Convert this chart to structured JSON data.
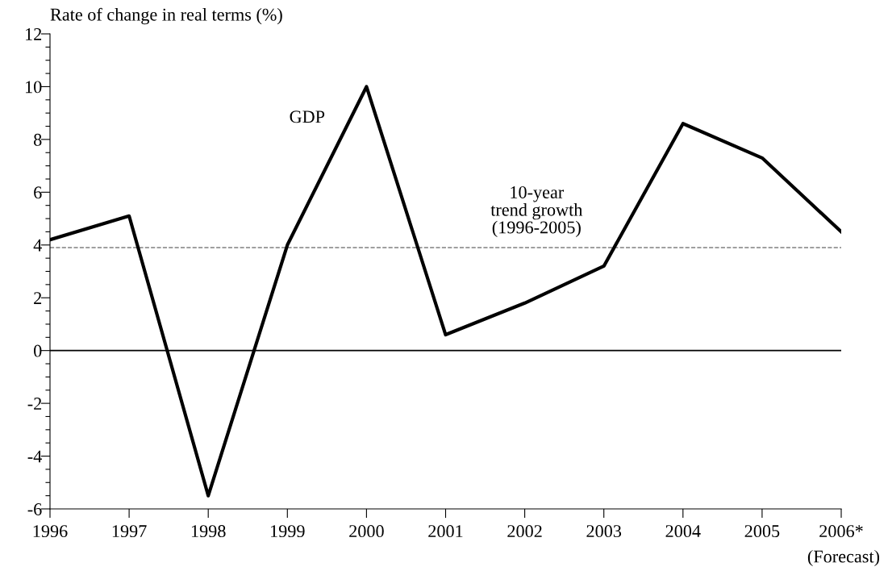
{
  "chart_data": {
    "type": "line",
    "ylabel": "Rate of change in real terms (%)",
    "categories": [
      "1996",
      "1997",
      "1998",
      "1999",
      "2000",
      "2001",
      "2002",
      "2003",
      "2004",
      "2005",
      "2006*"
    ],
    "series": [
      {
        "name": "GDP",
        "color": "#000000",
        "values": [
          4.2,
          5.1,
          -5.5,
          4.0,
          10.0,
          0.6,
          1.8,
          3.2,
          8.6,
          7.3,
          4.5
        ]
      }
    ],
    "ylim": [
      -6,
      12
    ],
    "yticks": [
      -6,
      {
        "value": -5.5,
        "label": null
      },
      {
        "value": -5,
        "label": null
      },
      {
        "value": -4.5,
        "label": null
      },
      -4,
      {
        "value": -3.5,
        "label": null
      },
      {
        "value": -3,
        "label": null
      },
      {
        "value": -2.5,
        "label": null
      },
      -2,
      {
        "value": -1.5,
        "label": null
      },
      {
        "value": -1,
        "label": null
      },
      {
        "value": -0.5,
        "label": null
      },
      0,
      {
        "value": 0.5,
        "label": null
      },
      {
        "value": 1,
        "label": null
      },
      {
        "value": 1.5,
        "label": null
      },
      2,
      {
        "value": 2.5,
        "label": null
      },
      {
        "value": 3,
        "label": null
      },
      {
        "value": 3.5,
        "label": null
      },
      4,
      {
        "value": 4.5,
        "label": null
      },
      {
        "value": 5,
        "label": null
      },
      {
        "value": 5.5,
        "label": null
      },
      6,
      {
        "value": 6.5,
        "label": null
      },
      {
        "value": 7,
        "label": null
      },
      {
        "value": 7.5,
        "label": null
      },
      8,
      {
        "value": 8.5,
        "label": null
      },
      {
        "value": 9,
        "label": null
      },
      {
        "value": 9.5,
        "label": null
      },
      10,
      {
        "value": 10.5,
        "label": null
      },
      {
        "value": 11,
        "label": null
      },
      {
        "value": 11.5,
        "label": null
      },
      12
    ],
    "ref_lines": [
      {
        "axis": "y",
        "value": 0,
        "label": null,
        "color": "#000000",
        "line_style": "solid"
      },
      {
        "axis": "y",
        "value": 3.9,
        "label": "10-year\ntrend growth\n(1996-2005)",
        "color": "#808080",
        "line_style": "dashed"
      }
    ],
    "annotations": [
      "(Forecast)"
    ],
    "grid": false,
    "legend": false,
    "line_style": "solid",
    "marker": "none"
  }
}
